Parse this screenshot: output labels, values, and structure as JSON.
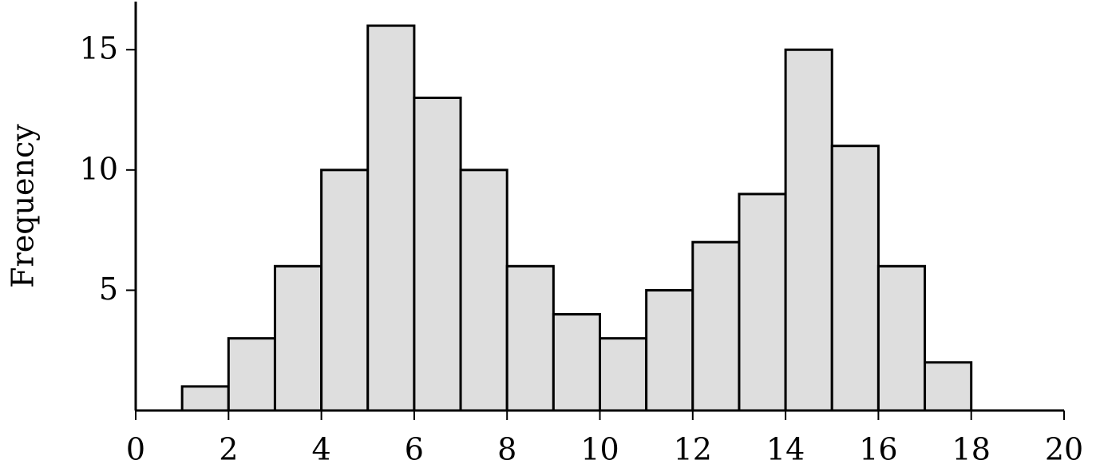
{
  "chart_data": {
    "type": "histogram",
    "ylabel": "Frequency",
    "bins": [
      1,
      2,
      3,
      4,
      5,
      6,
      7,
      8,
      9,
      10,
      11,
      12,
      13,
      14,
      15,
      16,
      17,
      18
    ],
    "values": [
      1,
      3,
      6,
      10,
      16,
      13,
      10,
      6,
      4,
      3,
      5,
      7,
      9,
      15,
      11,
      6,
      2
    ],
    "color": "#dedede",
    "edgecolor": "#000000",
    "xlim": [
      0,
      20
    ],
    "xticks": [
      0,
      2,
      4,
      6,
      8,
      10,
      12,
      14,
      16,
      18,
      20
    ],
    "ylim": [
      0,
      17
    ],
    "yticks": [
      5,
      10,
      15
    ]
  }
}
